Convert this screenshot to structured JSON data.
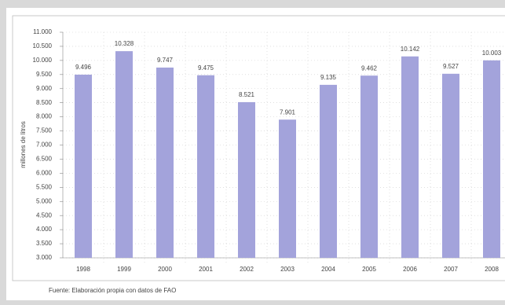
{
  "chart_data": {
    "type": "bar",
    "y_label": "millones de litros",
    "source": "Fuente: Elaboración propia con datos de FAO",
    "categories": [
      "1998",
      "1999",
      "2000",
      "2001",
      "2002",
      "2003",
      "2004",
      "2005",
      "2006",
      "2007",
      "2008"
    ],
    "values": [
      9496,
      10328,
      9747,
      9475,
      8521,
      7901,
      9135,
      9462,
      10142,
      9527,
      10003
    ],
    "value_labels": [
      "9.496",
      "10.328",
      "9.747",
      "9.475",
      "8.521",
      "7.901",
      "9.135",
      "9.462",
      "10.142",
      "9.527",
      "10.003"
    ],
    "color": "#a3a3db",
    "ylim": [
      3000,
      11000
    ],
    "yticks": [
      {
        "value": 3000,
        "label": "3.000"
      },
      {
        "value": 3500,
        "label": "3.500"
      },
      {
        "value": 4000,
        "label": "4.000"
      },
      {
        "value": 4500,
        "label": "4.500"
      },
      {
        "value": 5000,
        "label": "5.000"
      },
      {
        "value": 5500,
        "label": "5.500"
      },
      {
        "value": 6000,
        "label": "6.000"
      },
      {
        "value": 6500,
        "label": "6.500"
      },
      {
        "value": 7000,
        "label": "7.000"
      },
      {
        "value": 7500,
        "label": "7.500"
      },
      {
        "value": 8000,
        "label": "8.000"
      },
      {
        "value": 8500,
        "label": "8.500"
      },
      {
        "value": 9000,
        "label": "9.000"
      },
      {
        "value": 9500,
        "label": "9.500"
      },
      {
        "value": 10000,
        "label": "10.000"
      },
      {
        "value": 10500,
        "label": "10.500"
      },
      {
        "value": 11000,
        "label": "11.000"
      }
    ],
    "grid": true
  }
}
